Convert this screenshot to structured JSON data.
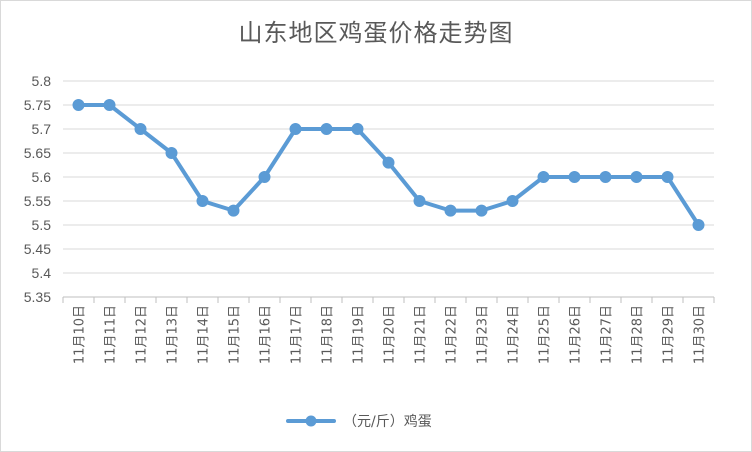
{
  "chart_data": {
    "type": "line",
    "title": "山东地区鸡蛋价格走势图",
    "categories": [
      "11月10日",
      "11月11日",
      "11月12日",
      "11月13日",
      "11月14日",
      "11月15日",
      "11月16日",
      "11月17日",
      "11月18日",
      "11月19日",
      "11月20日",
      "11月21日",
      "11月22日",
      "11月23日",
      "11月24日",
      "11月25日",
      "11月26日",
      "11月27日",
      "11月28日",
      "11月29日",
      "11月30日"
    ],
    "series": [
      {
        "name": "（元/斤）鸡蛋",
        "values": [
          5.75,
          5.75,
          5.7,
          5.65,
          5.55,
          5.53,
          5.6,
          5.7,
          5.7,
          5.7,
          5.63,
          5.55,
          5.53,
          5.53,
          5.55,
          5.6,
          5.6,
          5.6,
          5.6,
          5.6,
          5.5
        ]
      }
    ],
    "ylim": [
      5.35,
      5.8
    ],
    "yticks": [
      "5.35",
      "5.4",
      "5.45",
      "5.5",
      "5.55",
      "5.6",
      "5.65",
      "5.7",
      "5.75",
      "5.8"
    ],
    "grid": true,
    "legend": "bottom",
    "color": "#5b9bd5"
  }
}
